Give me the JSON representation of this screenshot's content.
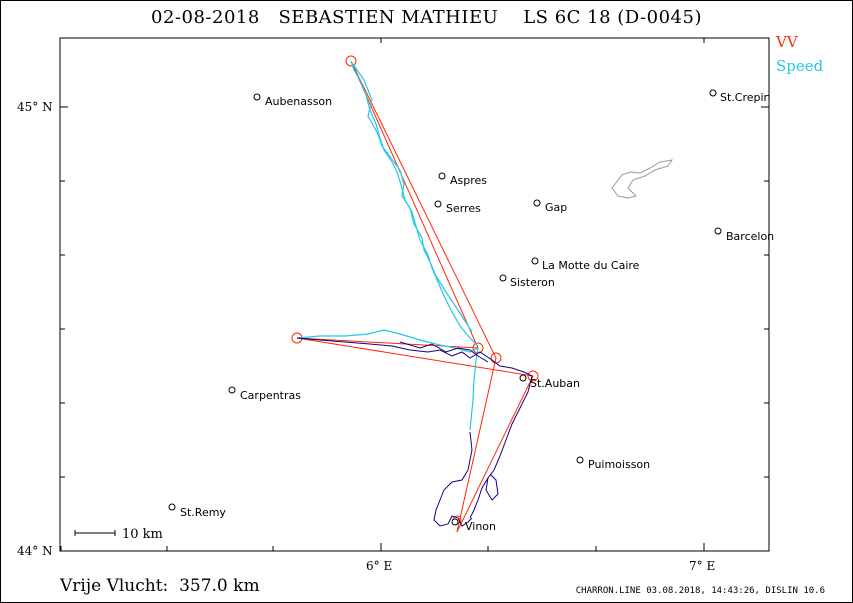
{
  "title": "02-08-2018   SEBASTIEN MATHIEU    LS 6C 18 (D-0045)",
  "legend": [
    {
      "label": "VV",
      "color": "#ff2a00"
    },
    {
      "label": "Speed",
      "color": "#22c8e8"
    }
  ],
  "axes": {
    "lat_labels": [
      "45° N",
      "44° N"
    ],
    "lon_labels": [
      "6° E",
      "7° E"
    ]
  },
  "scale_label": "10 km",
  "towns": [
    "Aubenasson",
    "St.Crepin",
    "Aspres",
    "Serres",
    "Gap",
    "Barcelon",
    "La Motte du Caire",
    "Sisteron",
    "St.Auban",
    "Carpentras",
    "Puimoisson",
    "St.Remy",
    "Vinon"
  ],
  "distance_label": "Vrije Vlucht:  357.0 km",
  "footer": "CHARRON.LINE 03.08.2018, 14:43:26, DISLIN 10.6",
  "colors": {
    "task": "#ff2a00",
    "track_fast": "#22c8e8",
    "track_slow": "#140080",
    "lake": "#9a9a9a"
  }
}
